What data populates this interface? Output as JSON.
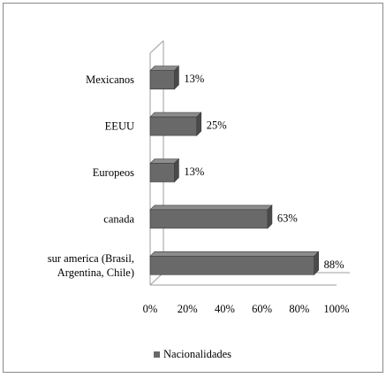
{
  "chart_data": {
    "type": "bar",
    "orientation": "horizontal",
    "style": "3d",
    "categories": [
      "Mexicanos",
      "EEUU",
      "Europeos",
      "canada",
      "sur america (Brasil, Argentina, Chile)"
    ],
    "category_lines": [
      [
        "Mexicanos"
      ],
      [
        "EEUU"
      ],
      [
        "Europeos"
      ],
      [
        "canada"
      ],
      [
        "sur america (Brasil,",
        "Argentina, Chile)"
      ]
    ],
    "series": [
      {
        "name": "Nacionalidades",
        "values": [
          13,
          25,
          13,
          63,
          88
        ],
        "data_labels": [
          "13%",
          "25%",
          "13%",
          "63%",
          "88%"
        ]
      }
    ],
    "xlim": [
      0,
      100
    ],
    "x_ticks": [
      "0%",
      "20%",
      "40%",
      "60%",
      "80%",
      "100%"
    ],
    "grid": false,
    "legend": "bottom",
    "colors": {
      "bar_front": "#696969",
      "bar_top": "#8c8c8c",
      "bar_side": "#4a4a4a",
      "axis": "#9e9e9e",
      "border": "#8a8a8a"
    }
  }
}
